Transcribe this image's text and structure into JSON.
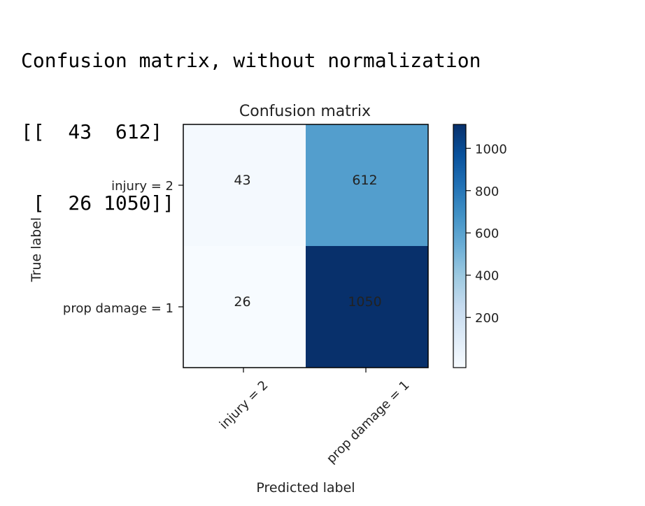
{
  "console_output": {
    "heading": "Confusion matrix, without normalization",
    "lines": [
      "[[  43  612]",
      " [  26 1050]]"
    ]
  },
  "chart_data": {
    "type": "heatmap",
    "title": "Confusion matrix",
    "xlabel": "Predicted label",
    "ylabel": "True label",
    "x_categories": [
      "injury = 2",
      "prop damage = 1"
    ],
    "y_categories": [
      "injury = 2",
      "prop damage = 1"
    ],
    "values": [
      [
        43,
        612
      ],
      [
        26,
        1050
      ]
    ],
    "cell_labels": [
      [
        "43",
        "612"
      ],
      [
        "26",
        "1050"
      ]
    ],
    "colormap": "Blues",
    "colorbar": {
      "range": [
        26,
        1050
      ],
      "ticks": [
        200,
        400,
        600,
        800,
        1000
      ],
      "tick_labels": [
        "200",
        "400",
        "600",
        "800",
        "1000"
      ]
    },
    "colors": {
      "low": "#f7fbff",
      "high": "#08306b"
    }
  }
}
